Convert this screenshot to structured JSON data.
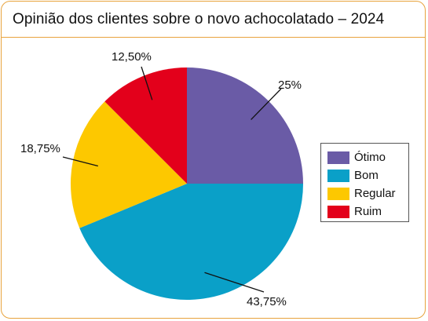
{
  "chart_data": {
    "type": "pie",
    "title": "Opinião dos clientes sobre o novo achocolatado – 2024",
    "legend_position": "right",
    "slices": [
      {
        "name": "Ótimo",
        "value": 25,
        "label": "25%",
        "color": "#6a5ba6"
      },
      {
        "name": "Bom",
        "value": 43.75,
        "label": "43,75%",
        "color": "#0aa0c8"
      },
      {
        "name": "Regular",
        "value": 18.75,
        "label": "18,75%",
        "color": "#fdc800"
      },
      {
        "name": "Ruim",
        "value": 12.5,
        "label": "12,50%",
        "color": "#e3001b"
      }
    ]
  },
  "frame": {
    "border_color": "#e8a33d"
  }
}
